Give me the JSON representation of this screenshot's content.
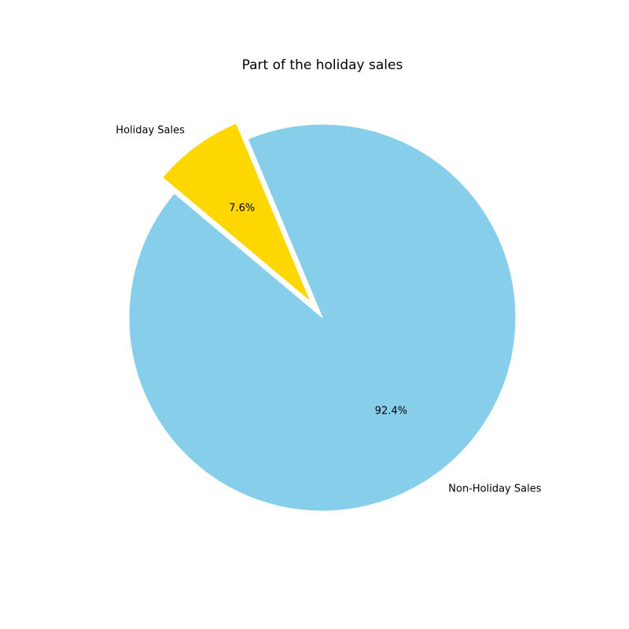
{
  "chart_data": {
    "type": "pie",
    "title": "Part of the holiday sales",
    "slices": [
      {
        "label": "Non-Holiday Sales",
        "value": 92.4,
        "pct_label": "92.4%",
        "color": "#87CEEB",
        "explode": false
      },
      {
        "label": "Holiday Sales",
        "value": 7.6,
        "pct_label": "7.6%",
        "color": "#FFD700",
        "explode": true
      }
    ]
  }
}
